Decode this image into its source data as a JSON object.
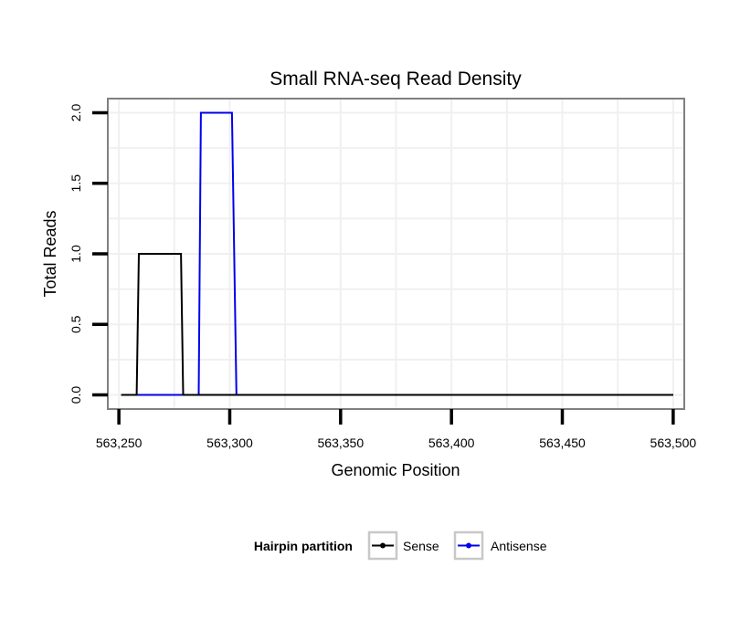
{
  "chart_data": {
    "type": "line",
    "title": "Small RNA-seq Read Density",
    "xlabel": "Genomic Position",
    "ylabel": "Total Reads",
    "xlim": [
      563245,
      563505
    ],
    "ylim": [
      -0.1,
      2.1
    ],
    "x_ticks": [
      563250,
      563300,
      563350,
      563400,
      563450,
      563500
    ],
    "x_tick_labels": [
      "563,250",
      "563,300",
      "563,350",
      "563,400",
      "563,450",
      "563,500"
    ],
    "y_ticks": [
      0,
      0.5,
      1,
      1.5,
      2
    ],
    "y_tick_labels": [
      "0.0",
      "0.5",
      "1.0",
      "1.5",
      "2.0"
    ],
    "grid": true,
    "legend": {
      "title": "Hairpin partition",
      "placement": "bottom",
      "entries": [
        "Sense",
        "Antisense"
      ]
    },
    "series": [
      {
        "name": "Antisense",
        "color": "#0000ee",
        "x": [
          563258,
          563286,
          563287,
          563301,
          563303,
          563500
        ],
        "y": [
          0,
          0,
          2,
          2,
          0,
          0
        ]
      },
      {
        "name": "Sense",
        "color": "#000000",
        "x": [
          563251,
          563258,
          563259,
          563278,
          563279,
          563500
        ],
        "y": [
          0,
          0,
          1,
          1,
          0,
          0
        ]
      }
    ]
  }
}
